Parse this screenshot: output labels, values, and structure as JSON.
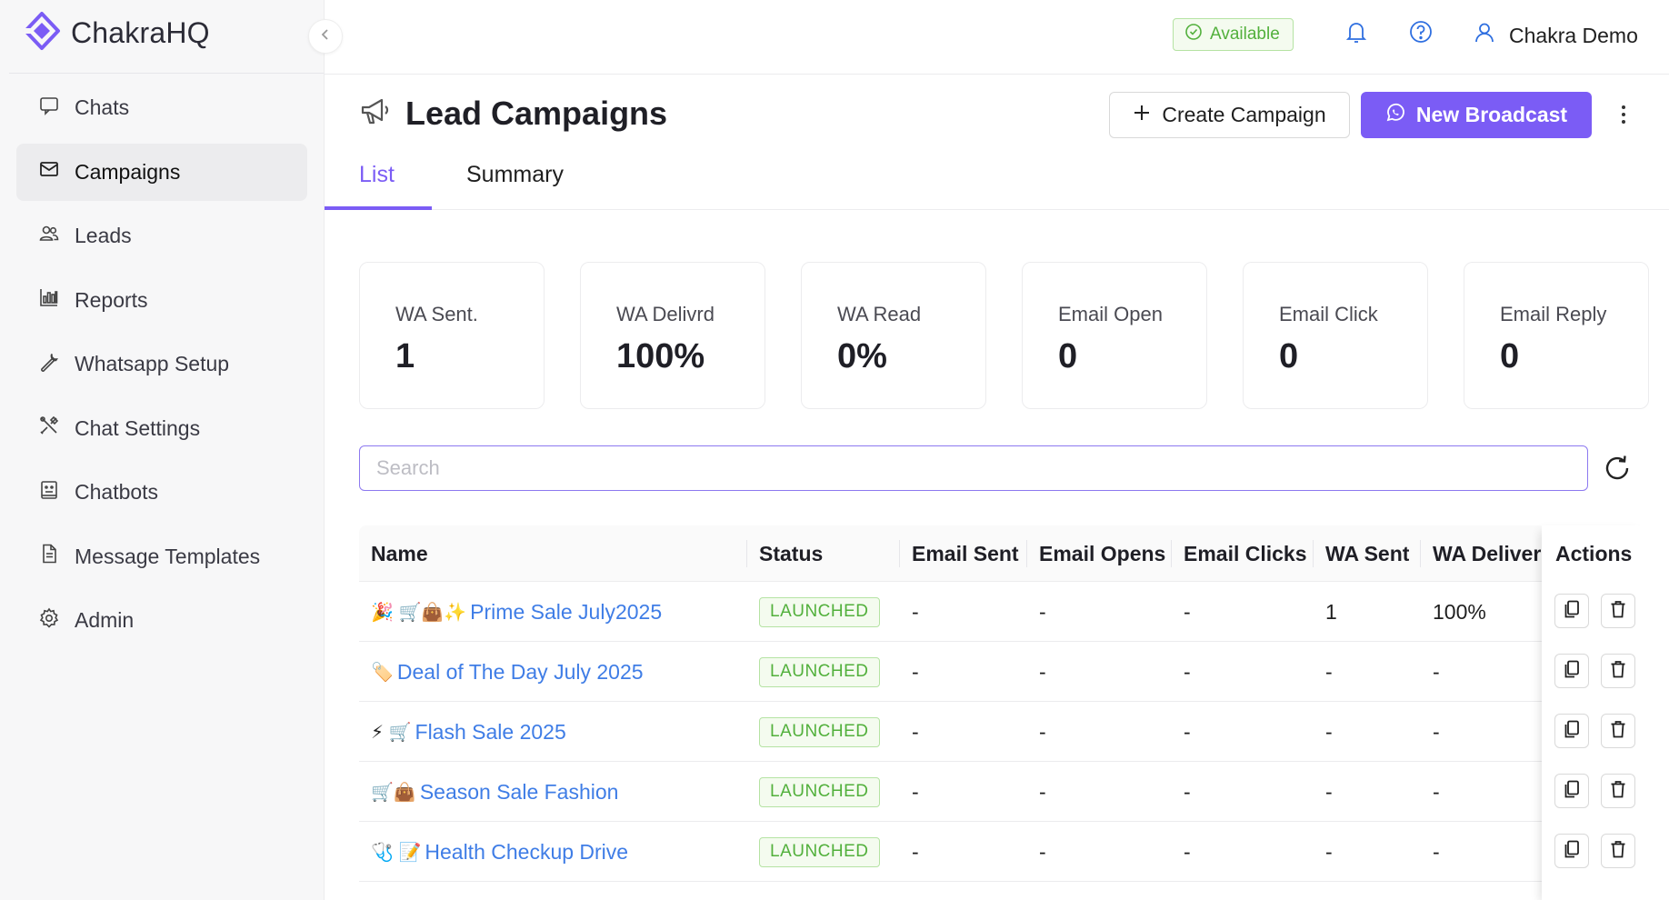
{
  "brand": {
    "name": "ChakraHQ",
    "logo_icon": "chakra-logo-icon",
    "accent": "#7b5cf5"
  },
  "sidebar": {
    "items": [
      {
        "label": "Chats",
        "icon": "chat-bubble-icon",
        "active": false
      },
      {
        "label": "Campaigns",
        "icon": "mail-icon",
        "active": true
      },
      {
        "label": "Leads",
        "icon": "users-icon",
        "active": false
      },
      {
        "label": "Reports",
        "icon": "bar-chart-icon",
        "active": false
      },
      {
        "label": "Whatsapp Setup",
        "icon": "wrench-icon",
        "active": false
      },
      {
        "label": "Chat Settings",
        "icon": "tools-icon",
        "active": false
      },
      {
        "label": "Chatbots",
        "icon": "robot-icon",
        "active": false
      },
      {
        "label": "Message Templates",
        "icon": "document-icon",
        "active": false
      },
      {
        "label": "Admin",
        "icon": "gear-icon",
        "active": false
      }
    ]
  },
  "topbar": {
    "status": "Available",
    "status_color": "#52b03c",
    "user_name": "Chakra Demo"
  },
  "header": {
    "title": "Lead Campaigns",
    "create_label": "Create Campaign",
    "broadcast_label": "New Broadcast"
  },
  "tabs": [
    {
      "label": "List",
      "active": true
    },
    {
      "label": "Summary",
      "active": false
    }
  ],
  "stats": [
    {
      "label": "WA Sent.",
      "value": "1"
    },
    {
      "label": "WA Delivrd",
      "value": "100%"
    },
    {
      "label": "WA Read",
      "value": "0%"
    },
    {
      "label": "Email Open",
      "value": "0"
    },
    {
      "label": "Email Click",
      "value": "0"
    },
    {
      "label": "Email Reply",
      "value": "0"
    }
  ],
  "search": {
    "placeholder": "Search",
    "value": ""
  },
  "table": {
    "columns": [
      "Name",
      "Status",
      "Email Sent",
      "Email Opens",
      "Email Clicks",
      "WA Sent",
      "WA Delivered",
      "Actions"
    ],
    "rows": [
      {
        "emoji": "🎉 🛒👜✨",
        "name": "Prime Sale July2025",
        "status": "LAUNCHED",
        "email_sent": "-",
        "email_opens": "-",
        "email_clicks": "-",
        "wa_sent": "1",
        "wa_delivered": "100%"
      },
      {
        "emoji": "🏷️",
        "name": "Deal of The Day July 2025",
        "status": "LAUNCHED",
        "email_sent": "-",
        "email_opens": "-",
        "email_clicks": "-",
        "wa_sent": "-",
        "wa_delivered": "-"
      },
      {
        "emoji": "⚡ 🛒",
        "name": "Flash Sale 2025",
        "status": "LAUNCHED",
        "email_sent": "-",
        "email_opens": "-",
        "email_clicks": "-",
        "wa_sent": "-",
        "wa_delivered": "-"
      },
      {
        "emoji": "🛒👜",
        "name": "Season Sale Fashion",
        "status": "LAUNCHED",
        "email_sent": "-",
        "email_opens": "-",
        "email_clicks": "-",
        "wa_sent": "-",
        "wa_delivered": "-"
      },
      {
        "emoji": "🩺 📝",
        "name": "Health Checkup Drive",
        "status": "LAUNCHED",
        "email_sent": "-",
        "email_opens": "-",
        "email_clicks": "-",
        "wa_sent": "-",
        "wa_delivered": "-"
      }
    ]
  }
}
